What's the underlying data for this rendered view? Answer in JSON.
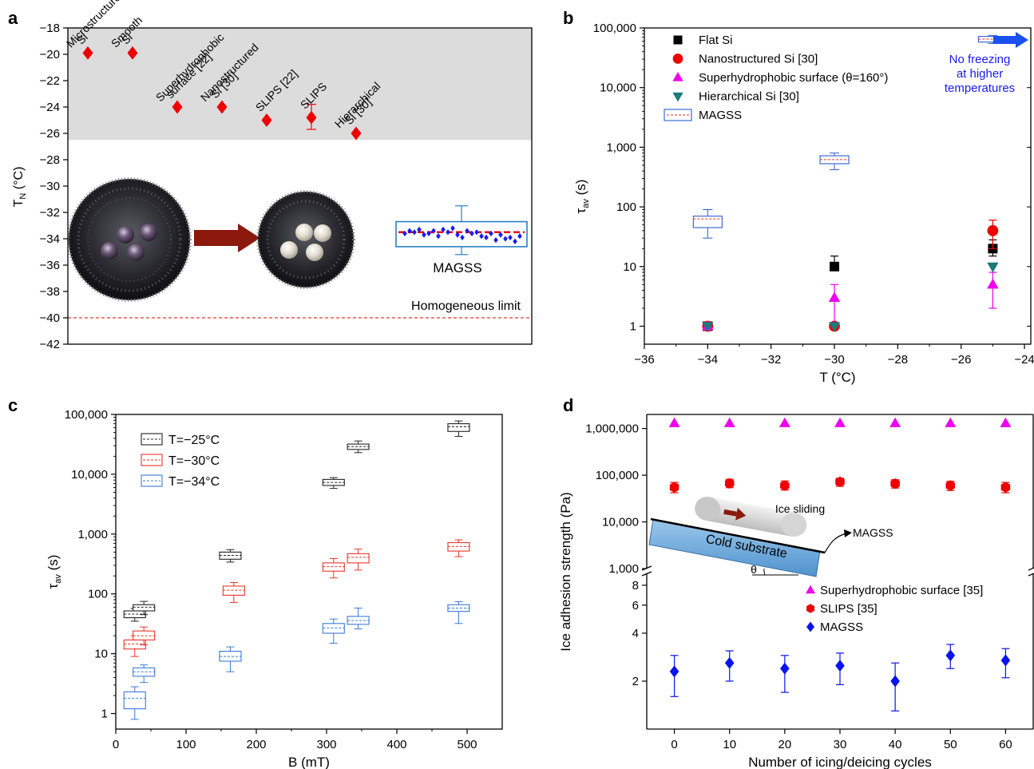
{
  "chart_data": [
    {
      "panel": "a",
      "type": "scatter",
      "ylabel_main": "T",
      "ylabel_sub": "N",
      "ylabel_unit": " (°C)",
      "ylim": [
        -42,
        -18
      ],
      "yticks": [
        -42,
        -40,
        -38,
        -36,
        -34,
        -32,
        -30,
        -28,
        -26,
        -24,
        -22,
        -20,
        -18
      ],
      "shaded_band": [
        -26.5,
        -18
      ],
      "homogeneous_limit": -40,
      "homogeneous_label": "Homogeneous limit",
      "points": [
        {
          "x": 1,
          "y": -19.9,
          "label": [
            "Microstructured",
            "Si"
          ]
        },
        {
          "x": 2,
          "y": -19.9,
          "label": [
            "Smooth",
            "Si"
          ]
        },
        {
          "x": 3,
          "y": -24.0,
          "label": [
            "Superhydrophobic",
            "surface [22]"
          ]
        },
        {
          "x": 4,
          "y": -24.0,
          "label": [
            "Nanostructured",
            "Si [30]"
          ]
        },
        {
          "x": 5,
          "y": -25.0,
          "label": [
            "SLIPS [22]"
          ]
        },
        {
          "x": 6,
          "y": -24.8,
          "err": [
            0.9,
            1.0
          ],
          "label": [
            "SLIPS"
          ]
        },
        {
          "x": 7,
          "y": -26.0,
          "label": [
            "Hierarchical",
            "Si [30]"
          ]
        }
      ],
      "magss": {
        "label": "MAGSS",
        "mean": -33.5,
        "box": [
          -34.6,
          -32.7
        ],
        "whisker": [
          -35.2,
          -31.5
        ],
        "scatter": [
          -33.6,
          -33.4,
          -33.5,
          -33.3,
          -33.7,
          -33.6,
          -33.4,
          -33.8,
          -33.3,
          -33.5,
          -33.2,
          -33.7,
          -33.9,
          -33.4,
          -33.6,
          -33.5,
          -33.8,
          -33.9,
          -33.6,
          -34.1,
          -33.7,
          -34.0,
          -33.9,
          -34.2,
          -33.8
        ]
      },
      "colors": {
        "marker": "#ee0000",
        "band": "#dcdcdc",
        "box": "#2b7fc2",
        "scatter": "#1a1aee",
        "arrow": "#8b1a0c"
      }
    },
    {
      "panel": "b",
      "type": "scatter",
      "xlabel": "T (°C)",
      "ylabel_main": "τ",
      "ylabel_sub": "av",
      "ylabel_unit": " (s)",
      "xlim": [
        -36,
        -23.8
      ],
      "xticks": [
        -36,
        -34,
        -32,
        -30,
        -28,
        -26,
        -24
      ],
      "ylim": [
        0.5,
        100000
      ],
      "yscale": "log",
      "yticks": [
        1,
        10,
        100,
        1000,
        10000,
        100000
      ],
      "ytick_labels": [
        "1",
        "10",
        "100",
        "1,000",
        "10,000",
        "100,000"
      ],
      "legend": "top-left",
      "series": [
        {
          "name": "Flat Si",
          "marker": "square",
          "color": "#000000",
          "points": [
            {
              "x": -34,
              "y": 1
            },
            {
              "x": -30,
              "y": 10,
              "err": [
                9,
                15
              ]
            },
            {
              "x": -25,
              "y": 20,
              "err": [
                15,
                28
              ]
            }
          ]
        },
        {
          "name": "Nanostructured Si [30]",
          "marker": "circle",
          "color": "#ee0000",
          "points": [
            {
              "x": -34,
              "y": 1
            },
            {
              "x": -30,
              "y": 1
            },
            {
              "x": -25,
              "y": 40,
              "err": [
                20,
                60
              ]
            }
          ]
        },
        {
          "name": "Superhydrophobic surface (θ=160°)",
          "marker": "triangle-up",
          "color": "#ee00ee",
          "points": [
            {
              "x": -34,
              "y": 1
            },
            {
              "x": -30,
              "y": 3,
              "err": [
                1,
                5
              ]
            },
            {
              "x": -25,
              "y": 5,
              "err": [
                2,
                8
              ]
            }
          ]
        },
        {
          "name": "Hierarchical Si [30]",
          "marker": "triangle-down",
          "color": "#1b7a7a",
          "points": [
            {
              "x": -34,
              "y": 1
            },
            {
              "x": -30,
              "y": 1
            },
            {
              "x": -25,
              "y": 10
            }
          ]
        }
      ],
      "magss": {
        "name": "MAGSS",
        "boxes": [
          {
            "x": -34,
            "q1": 45,
            "q3": 70,
            "mean": 63,
            "wlow": 30,
            "whigh": 90
          },
          {
            "x": -30,
            "q1": 530,
            "q3": 720,
            "mean": 620,
            "wlow": 420,
            "whigh": 800
          },
          {
            "x": -25,
            "q1": 58000,
            "q3": 72000,
            "mean": 65000,
            "wlow": 55000,
            "whigh": 75000
          }
        ]
      },
      "annotation": [
        "No freezing",
        "at higher",
        "temperatures"
      ]
    },
    {
      "panel": "c",
      "type": "box",
      "xlabel": "B (mT)",
      "ylabel_main": "τ",
      "ylabel_sub": "av",
      "ylabel_unit": " (s)",
      "xlim": [
        0,
        550
      ],
      "xticks": [
        0,
        100,
        200,
        300,
        400,
        500
      ],
      "ylim": [
        0.55,
        100000
      ],
      "yscale": "log",
      "yticks": [
        1,
        10,
        100,
        1000,
        10000,
        100000
      ],
      "ytick_labels": [
        "1",
        "10",
        "100",
        "1,000",
        "10,000",
        "100,000"
      ],
      "legend": "top-left",
      "series": [
        {
          "name": "T=−25°C",
          "color": "#222222",
          "boxes": [
            {
              "x": 27,
              "q1": 40,
              "q3": 52,
              "mean": 46,
              "wlow": 35,
              "whigh": 57
            },
            {
              "x": 40,
              "q1": 52,
              "q3": 66,
              "mean": 60,
              "wlow": 45,
              "whigh": 75
            },
            {
              "x": 163,
              "q1": 380,
              "q3": 500,
              "mean": 440,
              "wlow": 340,
              "whigh": 550
            },
            {
              "x": 310,
              "q1": 6500,
              "q3": 8200,
              "mean": 7300,
              "wlow": 5800,
              "whigh": 8800
            },
            {
              "x": 345,
              "q1": 26000,
              "q3": 32000,
              "mean": 29000,
              "wlow": 23000,
              "whigh": 36000
            },
            {
              "x": 488,
              "q1": 52000,
              "q3": 70000,
              "mean": 62000,
              "wlow": 43000,
              "whigh": 78000
            }
          ]
        },
        {
          "name": "T=−30°C",
          "color": "#e8362b",
          "boxes": [
            {
              "x": 27,
              "q1": 12,
              "q3": 17,
              "mean": 14.5,
              "wlow": 9,
              "whigh": 20
            },
            {
              "x": 40,
              "q1": 17,
              "q3": 24,
              "mean": 20,
              "wlow": 14,
              "whigh": 28
            },
            {
              "x": 168,
              "q1": 95,
              "q3": 135,
              "mean": 115,
              "wlow": 72,
              "whigh": 155
            },
            {
              "x": 310,
              "q1": 240,
              "q3": 330,
              "mean": 285,
              "wlow": 185,
              "whigh": 390
            },
            {
              "x": 345,
              "q1": 330,
              "q3": 470,
              "mean": 410,
              "wlow": 250,
              "whigh": 560
            },
            {
              "x": 488,
              "q1": 520,
              "q3": 720,
              "mean": 620,
              "wlow": 420,
              "whigh": 800
            }
          ]
        },
        {
          "name": "T=−34°C",
          "color": "#3a7bd5",
          "boxes": [
            {
              "x": 27,
              "q1": 1.2,
              "q3": 2.3,
              "mean": 1.8,
              "wlow": 0.8,
              "whigh": 2.8
            },
            {
              "x": 40,
              "q1": 4.2,
              "q3": 5.8,
              "mean": 5,
              "wlow": 3.3,
              "whigh": 6.5
            },
            {
              "x": 163,
              "q1": 7.5,
              "q3": 11,
              "mean": 9,
              "wlow": 5,
              "whigh": 13
            },
            {
              "x": 310,
              "q1": 22,
              "q3": 32,
              "mean": 27,
              "wlow": 15,
              "whigh": 38
            },
            {
              "x": 345,
              "q1": 31,
              "q3": 42,
              "mean": 36,
              "wlow": 26,
              "whigh": 58
            },
            {
              "x": 488,
              "q1": 51,
              "q3": 66,
              "mean": 58,
              "wlow": 32,
              "whigh": 74
            }
          ]
        }
      ]
    },
    {
      "panel": "d",
      "type": "scatter",
      "xlabel": "Number of icing/deicing cycles",
      "ylabel": "Ice adhesion strength (Pa)",
      "xlim": [
        -5,
        65
      ],
      "xticks": [
        0,
        10,
        20,
        30,
        40,
        50,
        60
      ],
      "yscale": "log-broken",
      "upper_ylim": [
        1000,
        2000000
      ],
      "upper_yticks": [
        1000,
        10000,
        100000,
        1000000
      ],
      "upper_ytick_labels": [
        "1,000",
        "10,000",
        "100,000",
        "1,000,000"
      ],
      "lower_ylim": [
        1,
        9.5
      ],
      "lower_yticks": [
        2,
        4,
        6,
        8
      ],
      "legend": "center-right",
      "series": [
        {
          "name": "Superhydrophobic surface [35]",
          "marker": "triangle-up",
          "color": "#ee00ee",
          "x": [
            0,
            10,
            20,
            30,
            40,
            50,
            60
          ],
          "y": [
            1300000,
            1300000,
            1300000,
            1300000,
            1300000,
            1300000,
            1300000
          ]
        },
        {
          "name": "SLIPS [35]",
          "marker": "hexagon",
          "color": "#ee0000",
          "x": [
            0,
            10,
            20,
            30,
            40,
            50,
            60
          ],
          "y": [
            55000,
            67000,
            60000,
            72000,
            66000,
            60000,
            55000
          ],
          "err": [
            [
              42000,
              70000
            ],
            [
              54000,
              82000
            ],
            [
              48000,
              75000
            ],
            [
              58000,
              86000
            ],
            [
              53000,
              80000
            ],
            [
              47000,
              74000
            ],
            [
              42000,
              70000
            ]
          ]
        },
        {
          "name": "MAGSS",
          "marker": "diamond",
          "color": "#0a14ee",
          "x": [
            0,
            10,
            20,
            30,
            40,
            50,
            60
          ],
          "y": [
            2.3,
            2.6,
            2.4,
            2.5,
            2.0,
            2.9,
            2.7
          ],
          "err": [
            [
              1.6,
              2.9
            ],
            [
              2.0,
              3.1
            ],
            [
              1.7,
              2.9
            ],
            [
              1.9,
              3.0
            ],
            [
              1.3,
              2.6
            ],
            [
              2.4,
              3.4
            ],
            [
              2.1,
              3.2
            ]
          ]
        }
      ],
      "inset": {
        "ice_label": "Ice sliding",
        "substrate_label": "Cold substrate",
        "pointer_label": "MAGSS",
        "angle_label": "θ"
      }
    }
  ],
  "panel_labels": [
    "a",
    "b",
    "c",
    "d"
  ]
}
